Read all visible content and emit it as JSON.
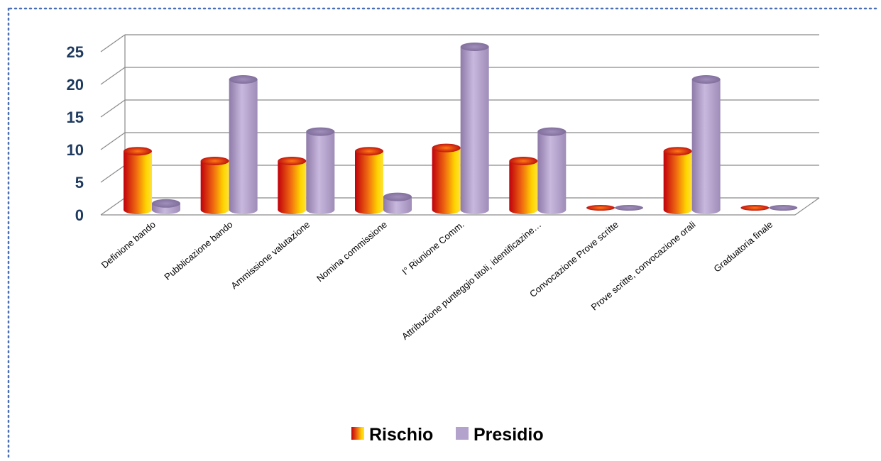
{
  "chart_data": {
    "type": "bar",
    "title": "",
    "xlabel": "",
    "ylabel": "",
    "ylim": [
      0,
      25
    ],
    "yticks": [
      0,
      5,
      10,
      15,
      20,
      25
    ],
    "grid": true,
    "legend_placement": "bottom-center",
    "categories": [
      "Definione bando",
      "Pubblicazione bando",
      "Ammissione valutazione",
      "Nomina commissione",
      "I° Riunione Comm.",
      "Attribuzione punteggio titoli, identificazine…",
      "Convocazione Prove scritte",
      "Prove scritte, convocazione orali",
      "Graduatoria finale"
    ],
    "series": [
      {
        "name": "Rischio",
        "values": [
          9,
          7.5,
          7.5,
          9,
          9.5,
          7.5,
          0,
          9,
          0
        ],
        "color": "#e0331a"
      },
      {
        "name": "Presidio",
        "values": [
          1,
          20,
          12,
          2,
          25,
          12,
          0,
          20,
          0
        ],
        "color": "#b3a2cc"
      }
    ]
  }
}
